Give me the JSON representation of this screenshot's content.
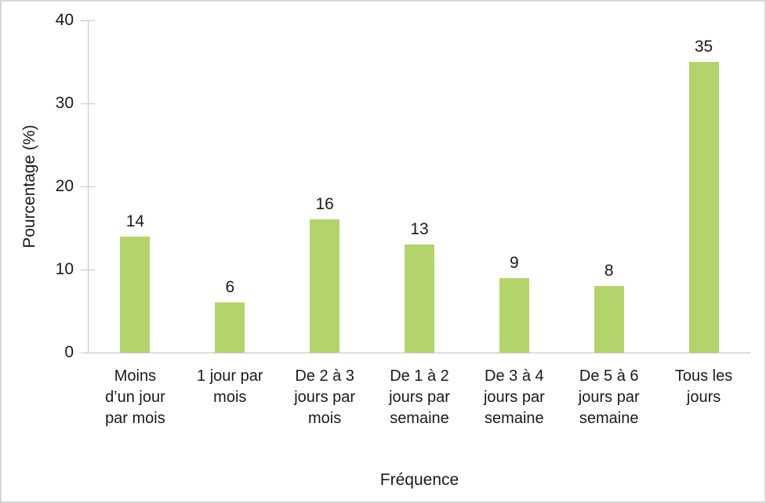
{
  "chart_data": {
    "type": "bar",
    "title": "",
    "xlabel": "Fréquence",
    "ylabel": "Pourcentage (%)",
    "categories": [
      "Moins d’un jour par mois",
      "1 jour par mois",
      "De 2 à 3 jours par mois",
      "De 1 à 2 jours par semaine",
      "De 3 à 4 jours par semaine",
      "De 5 à 6 jours par semaine",
      "Tous les jours"
    ],
    "category_lines": [
      [
        "Moins",
        "d’un jour",
        "par mois"
      ],
      [
        "1 jour par",
        "mois"
      ],
      [
        "De 2 à 3",
        "jours par",
        "mois"
      ],
      [
        "De 1 à 2",
        "jours par",
        "semaine"
      ],
      [
        "De 3 à 4",
        "jours par",
        "semaine"
      ],
      [
        "De 5 à 6",
        "jours par",
        "semaine"
      ],
      [
        "Tous les",
        "jours"
      ]
    ],
    "values": [
      14,
      6,
      16,
      13,
      9,
      8,
      35
    ],
    "ylim": [
      0,
      40
    ],
    "yticks": [
      0,
      10,
      20,
      30,
      40
    ],
    "grid": false,
    "legend": false,
    "bar_color": "#b2d46a",
    "axis_color": "#c3c3c3",
    "text_color": "#1a1a1a"
  }
}
